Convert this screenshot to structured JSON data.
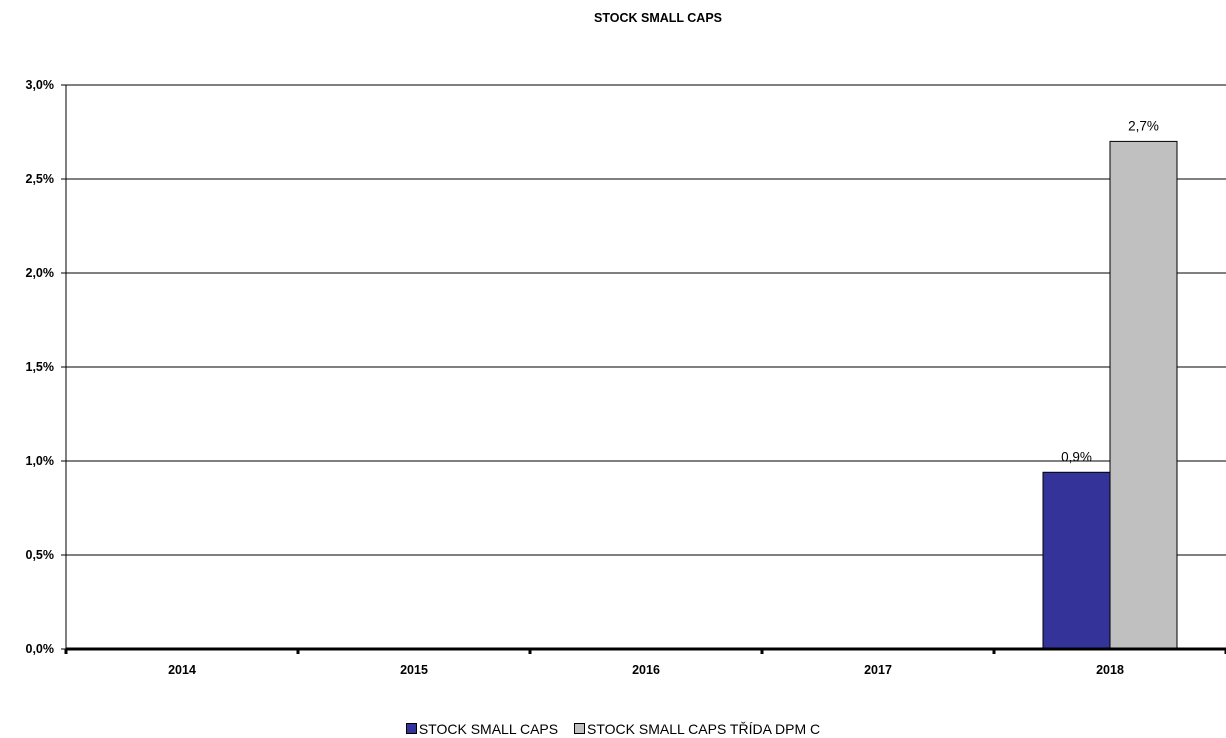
{
  "chart_data": {
    "type": "bar",
    "title": "STOCK SMALL CAPS",
    "categories": [
      "2014",
      "2015",
      "2016",
      "2017",
      "2018"
    ],
    "series": [
      {
        "name": "STOCK SMALL CAPS",
        "color": "#333399",
        "values": [
          null,
          null,
          null,
          null,
          0.94
        ]
      },
      {
        "name": "STOCK SMALL CAPS TŘÍDA DPM C",
        "color": "#C0C0C0",
        "values": [
          null,
          null,
          null,
          null,
          2.7
        ]
      }
    ],
    "data_labels": [
      {
        "category": "2018",
        "series": "STOCK SMALL CAPS",
        "text": "0,9%"
      },
      {
        "category": "2018",
        "series": "STOCK SMALL CAPS TŘÍDA DPM C",
        "text": "2,7%"
      }
    ],
    "yticks": [
      "0,0%",
      "0,5%",
      "1,0%",
      "1,5%",
      "2,0%",
      "2,5%",
      "3,0%"
    ],
    "ylim": [
      0,
      3.0
    ],
    "grid": true,
    "legend": "bottom"
  }
}
